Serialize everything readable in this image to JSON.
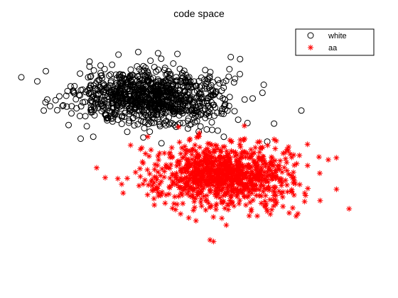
{
  "chart_data": {
    "type": "scatter",
    "title": "code space",
    "xlabel": "",
    "ylabel": "",
    "axes_visible": false,
    "grid": false,
    "legend_position": "top-right",
    "xlim": [
      -5,
      5
    ],
    "ylim": [
      -3,
      3.5
    ],
    "series": [
      {
        "name": "white",
        "marker": "circle-open",
        "color": "#000000",
        "count": 1000,
        "center": [
          -1.4,
          1.5
        ],
        "spread": [
          1.05,
          0.42
        ],
        "extremes": [
          [
            -4.55,
            1.1
          ],
          [
            -4.5,
            1.35
          ],
          [
            -1.2,
            2.85
          ],
          [
            -2.0,
            2.35
          ],
          [
            0.0,
            2.0
          ],
          [
            3.0,
            1.1
          ],
          [
            2.2,
            0.7
          ],
          [
            -3.1,
            0.3
          ],
          [
            2.0,
            0.15
          ],
          [
            -1.1,
            0.1
          ]
        ]
      },
      {
        "name": "aa",
        "marker": "asterisk",
        "color": "#ff0000",
        "count": 1000,
        "center": [
          0.7,
          -0.85
        ],
        "spread": [
          1.0,
          0.5
        ],
        "extremes": [
          [
            -3.0,
            -0.65
          ],
          [
            -2.75,
            -0.95
          ],
          [
            3.55,
            -1.65
          ],
          [
            4.4,
            -1.9
          ],
          [
            2.9,
            -2.05
          ],
          [
            0.8,
            -2.4
          ],
          [
            -0.4,
            -1.3
          ],
          [
            -1.5,
            0.3
          ],
          [
            1.3,
            0.2
          ],
          [
            -0.6,
            0.6
          ]
        ]
      }
    ]
  }
}
